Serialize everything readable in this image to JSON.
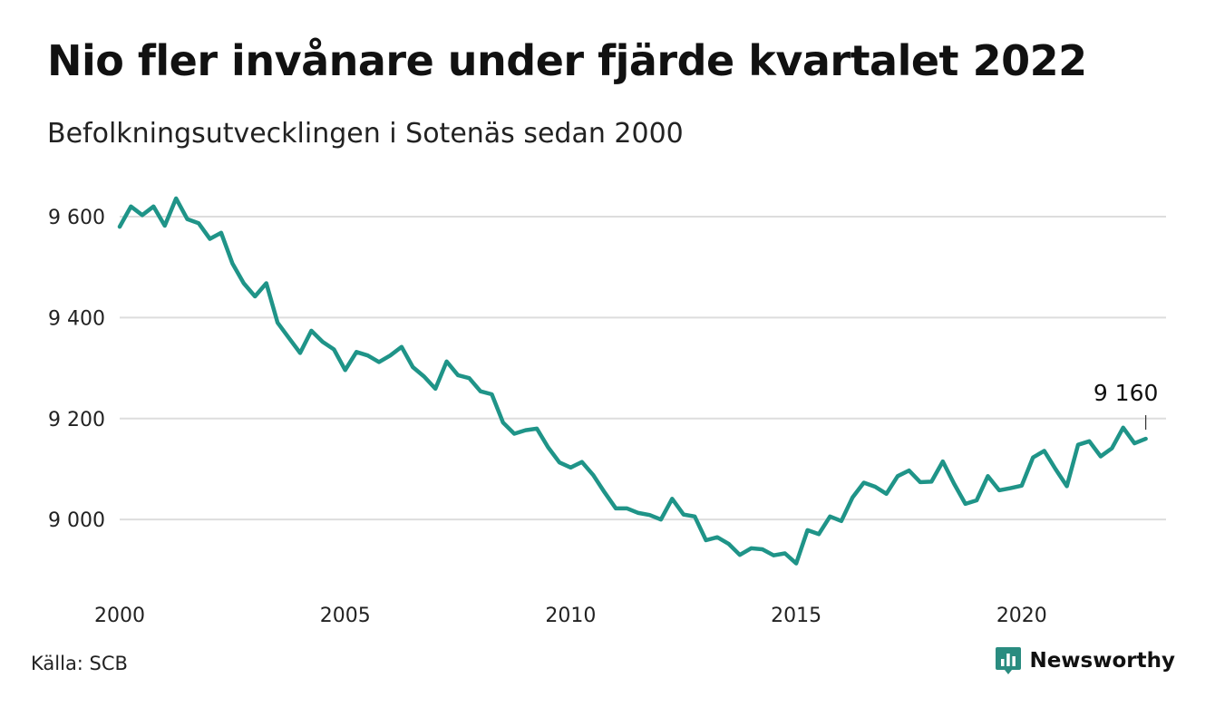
{
  "header": {
    "title": "Nio fler invånare under fjärde kvartalet 2022",
    "subtitle": "Befolkningsutvecklingen i Sotenäs sedan 2000"
  },
  "footer": {
    "source": "Källa: SCB",
    "brand": "Newsworthy",
    "brand_color": "#2a8c80"
  },
  "chart_data": {
    "type": "line",
    "title": "Nio fler invånare under fjärde kvartalet 2022",
    "subtitle": "Befolkningsutvecklingen i Sotenäs sedan 2000",
    "xlabel": "",
    "ylabel": "",
    "x_ticks": [
      2000,
      2005,
      2010,
      2015,
      2020
    ],
    "y_ticks": [
      9000,
      9200,
      9400,
      9600
    ],
    "y_tick_labels": [
      "9 000",
      "9 200",
      "9 400",
      "9 600"
    ],
    "xlim": [
      2000,
      2023.2
    ],
    "ylim": [
      8880,
      9670
    ],
    "grid": "horizontal",
    "line_color": "#1f9488",
    "annotation": {
      "label": "9 160",
      "x": 2022.75,
      "y": 9160
    },
    "series": [
      {
        "x": [
          2000.0,
          2000.25,
          2000.5,
          2000.75,
          2001.0,
          2001.25,
          2001.5,
          2001.75,
          2002.0,
          2002.25,
          2002.5,
          2002.75,
          2003.0,
          2003.25,
          2003.5,
          2003.75,
          2004.0,
          2004.25,
          2004.5,
          2004.75,
          2005.0,
          2005.25,
          2005.5,
          2005.75,
          2006.0,
          2006.25,
          2006.5,
          2006.75,
          2007.0,
          2007.25,
          2007.5,
          2007.75,
          2008.0,
          2008.25,
          2008.5,
          2008.75,
          2009.0,
          2009.25,
          2009.5,
          2009.75,
          2010.0,
          2010.25,
          2010.5,
          2010.75,
          2011.0,
          2011.25,
          2011.5,
          2011.75,
          2012.0,
          2012.25,
          2012.5,
          2012.75,
          2013.0,
          2013.25,
          2013.5,
          2013.75,
          2014.0,
          2014.25,
          2014.5,
          2014.75,
          2015.0,
          2015.25,
          2015.5,
          2015.75,
          2016.0,
          2016.25,
          2016.5,
          2016.75,
          2017.0,
          2017.25,
          2017.5,
          2017.75,
          2018.0,
          2018.25,
          2018.5,
          2018.75,
          2019.0,
          2019.25,
          2019.5,
          2019.75,
          2020.0,
          2020.25,
          2020.5,
          2020.75,
          2021.0,
          2021.25,
          2021.5,
          2021.75,
          2022.0,
          2022.25,
          2022.5,
          2022.75
        ],
        "values": [
          9580,
          9620,
          9603,
          9620,
          9582,
          9636,
          9595,
          9587,
          9556,
          9568,
          9507,
          9468,
          9442,
          9468,
          9390,
          9360,
          9330,
          9374,
          9352,
          9337,
          9296,
          9332,
          9325,
          9312,
          9325,
          9342,
          9302,
          9283,
          9259,
          9313,
          9286,
          9280,
          9254,
          9248,
          9192,
          9170,
          9177,
          9180,
          9143,
          9113,
          9103,
          9114,
          9088,
          9054,
          9022,
          9022,
          9013,
          9009,
          9000,
          9041,
          9010,
          9006,
          8959,
          8965,
          8952,
          8930,
          8943,
          8941,
          8929,
          8933,
          8913,
          8979,
          8971,
          9006,
          8997,
          9044,
          9073,
          9065,
          9051,
          9086,
          9097,
          9074,
          9075,
          9115,
          9071,
          9031,
          9038,
          9086,
          9058,
          9062,
          9067,
          9123,
          9136,
          9100,
          9066,
          9148,
          9155,
          9125,
          9141,
          9182,
          9151,
          9160
        ]
      }
    ]
  }
}
